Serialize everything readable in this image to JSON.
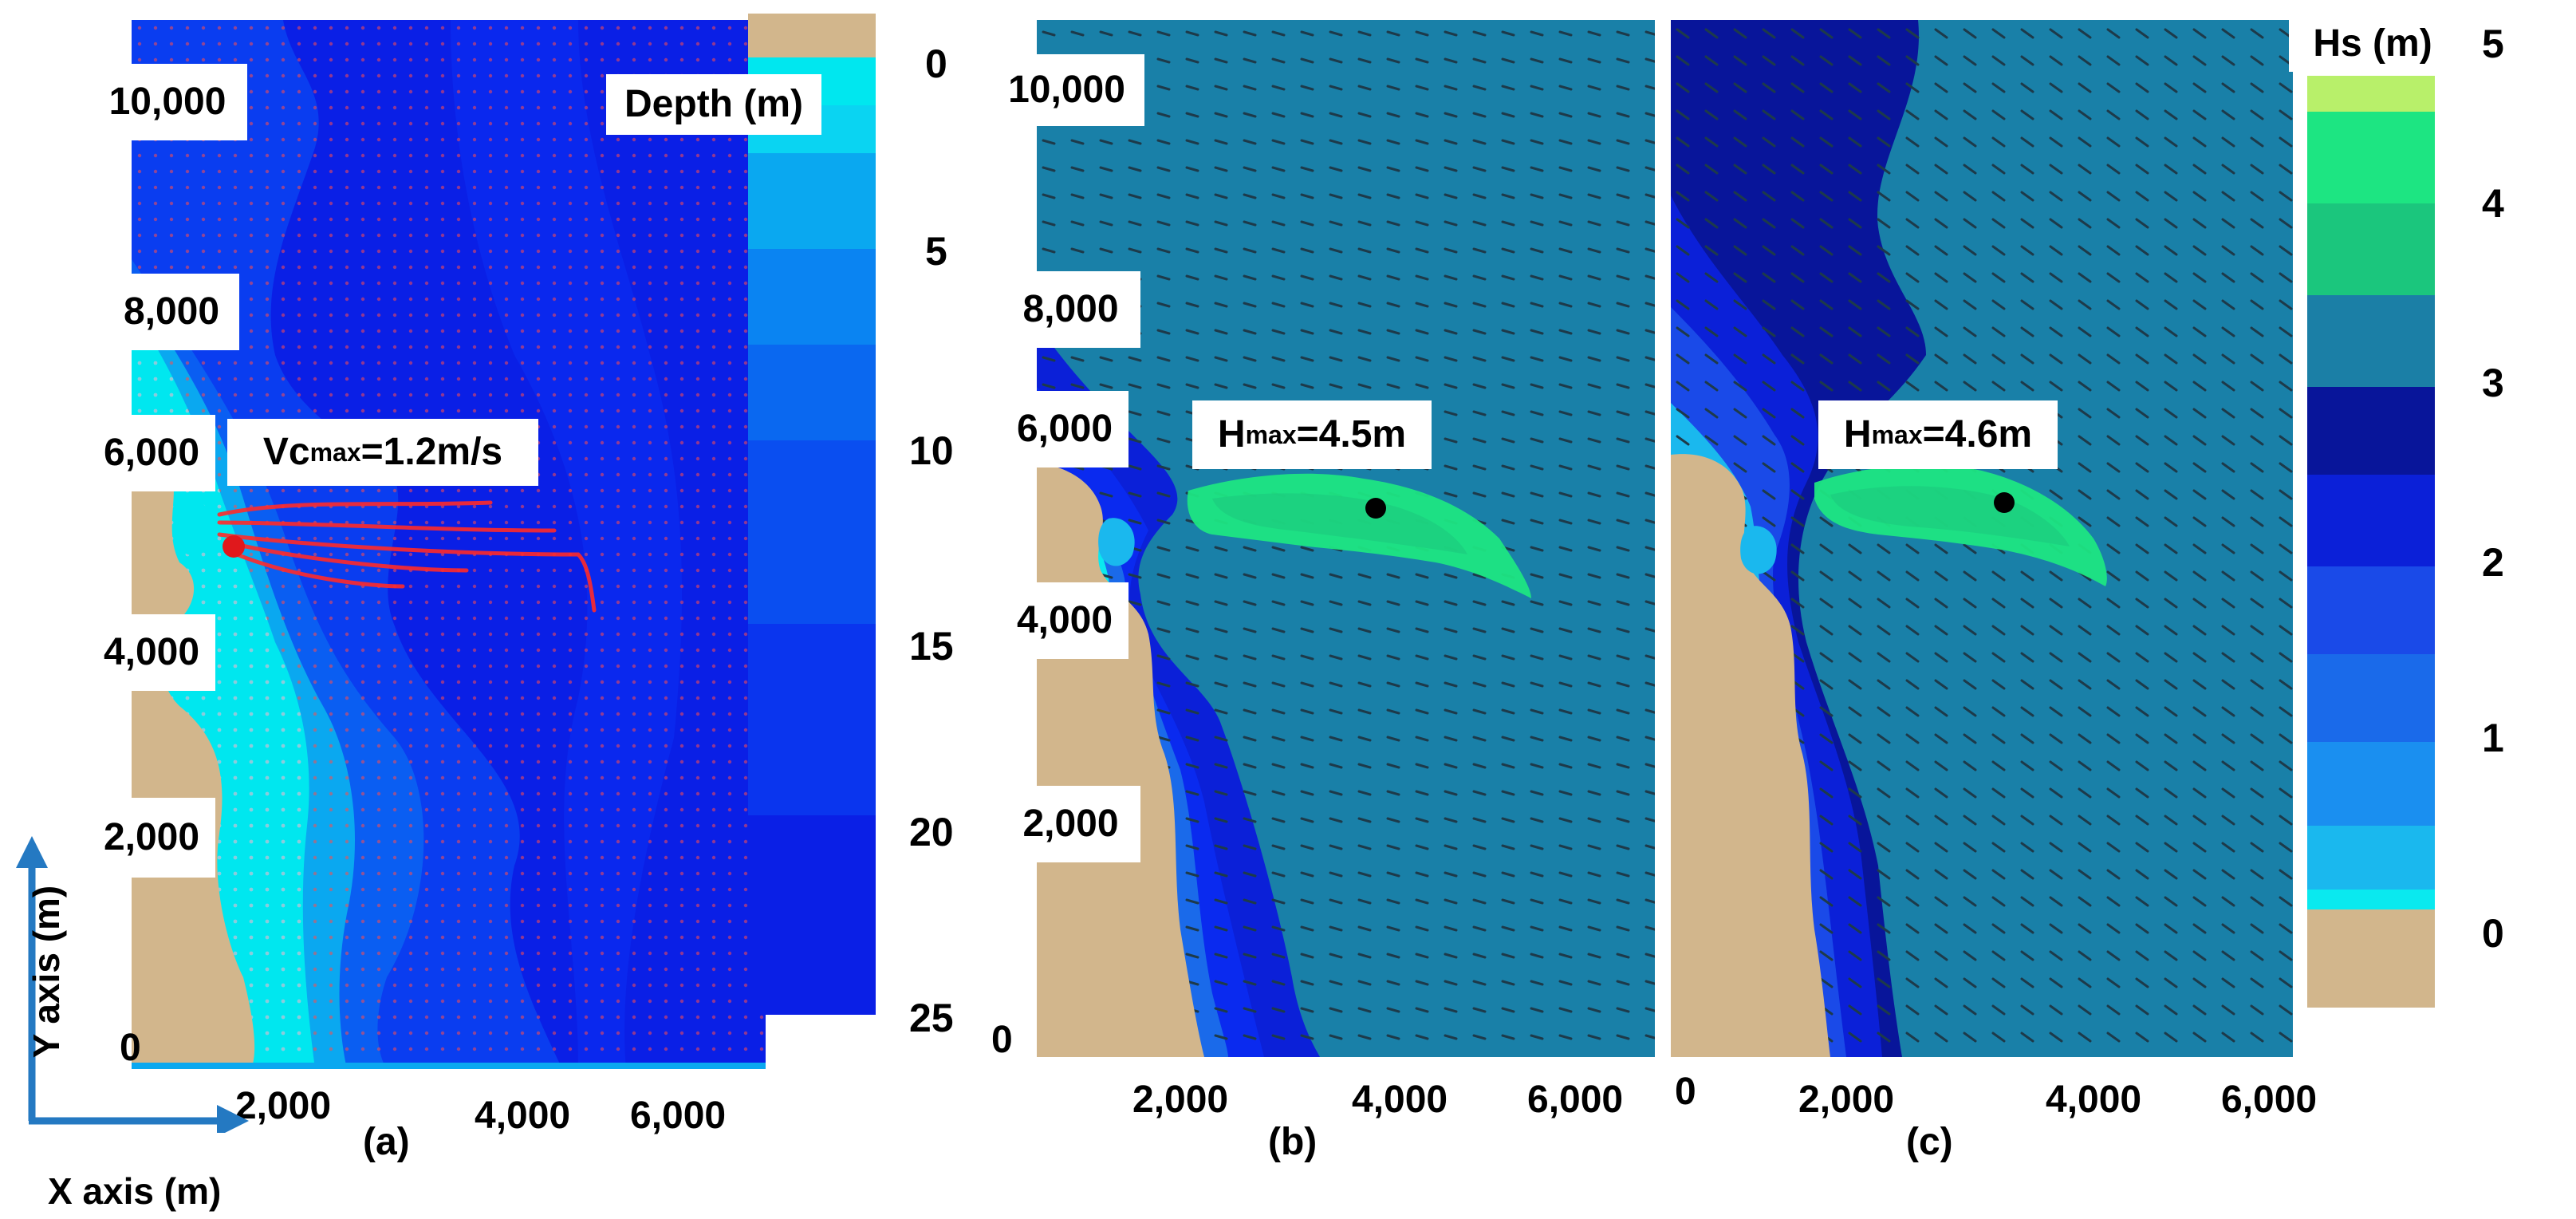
{
  "colors": {
    "land": "#d2b68c",
    "depth_levels": [
      "#00e7ef",
      "#00c8f0",
      "#0aa8f0",
      "#0a84f2",
      "#0a5ef2",
      "#0a3df0",
      "#0a2aef",
      "#0a1fe6",
      "#0a15e0",
      "#0612da"
    ],
    "hs_levels": [
      "#0ae9ef",
      "#1ab8ee",
      "#1a8ff0",
      "#1a6aea",
      "#1a4ae8",
      "#0b20d8",
      "#08159a",
      "#1b7fa6",
      "#1bc67d",
      "#1de582",
      "#b8f06a"
    ],
    "sea_b": "#1980a8",
    "velocity": "#ff2a2a",
    "blue_axis_arrow": "#2479c2"
  },
  "panel_a": {
    "caption": "(a)",
    "annotation_main": "Vc",
    "annotation_sub": "max",
    "annotation_tail": "=1.2m/s",
    "y_ticks": [
      "10,000",
      "8,000",
      "6,000",
      "4,000",
      "2,000",
      "0"
    ],
    "x_ticks": [
      "2,000",
      "4,000",
      "6,000"
    ]
  },
  "panel_b": {
    "caption": "(b)",
    "annotation_main": "H",
    "annotation_sub": "max",
    "annotation_tail": "=4.5m",
    "y_ticks": [
      "10,000",
      "8,000",
      "6,000",
      "4,000",
      "2,000",
      "0"
    ],
    "x_ticks": [
      "2,000",
      "4,000",
      "6,000"
    ]
  },
  "panel_c": {
    "caption": "(c)",
    "annotation_main": "H",
    "annotation_sub": "max",
    "annotation_tail": "=4.6m",
    "x_ticks": [
      "0",
      "2,000",
      "4,000",
      "6,000"
    ]
  },
  "depth_legend": {
    "title": "Depth (m)",
    "ticks": [
      "0",
      "5",
      "10",
      "15",
      "20",
      "25"
    ]
  },
  "hs_legend": {
    "title": "Hs (m)",
    "ticks": [
      "5",
      "4",
      "3",
      "2",
      "1",
      "0"
    ]
  },
  "axes": {
    "y_axis_label": "Y axis (m)",
    "x_axis_label": "X axis (m)"
  }
}
